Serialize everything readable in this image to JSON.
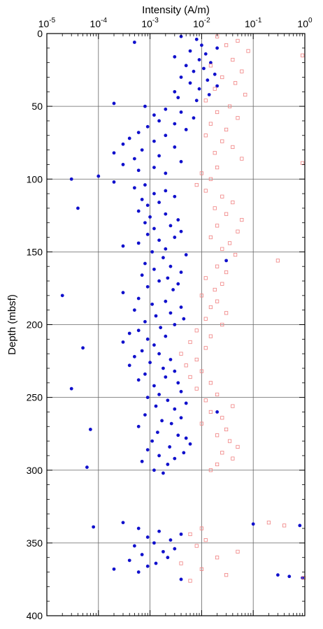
{
  "chart_data": {
    "type": "scatter",
    "title": "",
    "xlabel": "Intensity (A/m)",
    "ylabel": "Depth (mbsf)",
    "x_scale": "log",
    "xlim": [
      1e-05,
      1
    ],
    "ylim": [
      0,
      400
    ],
    "y_inverted": true,
    "x_axis_position": "top",
    "grid": true,
    "x_tick_labels": [
      {
        "mant": "10",
        "exp": "-5"
      },
      {
        "mant": "10",
        "exp": "-4"
      },
      {
        "mant": "10",
        "exp": "-3"
      },
      {
        "mant": "10",
        "exp": "-2"
      },
      {
        "mant": "10",
        "exp": "-1"
      },
      {
        "mant": "10",
        "exp": "0"
      }
    ],
    "y_ticks": [
      0,
      50,
      100,
      150,
      200,
      250,
      300,
      350,
      400
    ],
    "series": [
      {
        "marker": "filled-circle",
        "color": "#1010cc",
        "points": [
          [
            2,
            0.004
          ],
          [
            4,
            0.008
          ],
          [
            6,
            0.0005
          ],
          [
            8,
            0.01
          ],
          [
            10,
            0.02
          ],
          [
            12,
            0.006
          ],
          [
            14,
            0.012
          ],
          [
            16,
            0.003
          ],
          [
            18,
            0.009
          ],
          [
            20,
            0.015
          ],
          [
            22,
            0.005
          ],
          [
            24,
            0.011
          ],
          [
            26,
            0.007
          ],
          [
            28,
            0.018
          ],
          [
            30,
            0.004
          ],
          [
            32,
            0.013
          ],
          [
            34,
            0.006
          ],
          [
            36,
            0.02
          ],
          [
            38,
            0.009
          ],
          [
            40,
            0.003
          ],
          [
            42,
            0.014
          ],
          [
            44,
            0.0035
          ],
          [
            46,
            0.008
          ],
          [
            48,
            0.0002
          ],
          [
            50,
            0.0008
          ],
          [
            52,
            0.002
          ],
          [
            54,
            0.004
          ],
          [
            56,
            0.0012
          ],
          [
            58,
            0.007
          ],
          [
            60,
            0.0015
          ],
          [
            62,
            0.003
          ],
          [
            64,
            0.0009
          ],
          [
            66,
            0.005
          ],
          [
            68,
            0.0006
          ],
          [
            70,
            0.002
          ],
          [
            72,
            0.0004
          ],
          [
            74,
            0.0012
          ],
          [
            76,
            0.0003
          ],
          [
            78,
            0.003
          ],
          [
            80,
            0.0007
          ],
          [
            82,
            0.0002
          ],
          [
            84,
            0.0015
          ],
          [
            86,
            0.0005
          ],
          [
            88,
            0.004
          ],
          [
            90,
            0.0003
          ],
          [
            92,
            0.0012
          ],
          [
            94,
            0.0006
          ],
          [
            96,
            0.002
          ],
          [
            98,
            0.0001
          ],
          [
            100,
            3e-05
          ],
          [
            102,
            0.0002
          ],
          [
            104,
            0.0008
          ],
          [
            106,
            0.0005
          ],
          [
            108,
            0.002
          ],
          [
            110,
            0.0012
          ],
          [
            112,
            0.003
          ],
          [
            114,
            0.0007
          ],
          [
            116,
            0.0015
          ],
          [
            118,
            0.0009
          ],
          [
            120,
            4e-05
          ],
          [
            122,
            0.0006
          ],
          [
            124,
            0.002
          ],
          [
            126,
            0.001
          ],
          [
            128,
            0.0035
          ],
          [
            130,
            0.0008
          ],
          [
            132,
            0.0025
          ],
          [
            134,
            0.0012
          ],
          [
            136,
            0.004
          ],
          [
            138,
            0.0009
          ],
          [
            140,
            0.003
          ],
          [
            142,
            0.0015
          ],
          [
            144,
            0.0006
          ],
          [
            146,
            0.0003
          ],
          [
            148,
            0.002
          ],
          [
            150,
            0.0011
          ],
          [
            152,
            0.005
          ],
          [
            154,
            0.0018
          ],
          [
            156,
            0.03
          ],
          [
            158,
            0.0008
          ],
          [
            160,
            0.0025
          ],
          [
            162,
            0.0012
          ],
          [
            164,
            0.004
          ],
          [
            166,
            0.0007
          ],
          [
            168,
            0.0022
          ],
          [
            170,
            0.0015
          ],
          [
            172,
            0.0035
          ],
          [
            174,
            0.0009
          ],
          [
            176,
            0.0028
          ],
          [
            178,
            0.0003
          ],
          [
            180,
            2e-05
          ],
          [
            182,
            0.0006
          ],
          [
            184,
            0.002
          ],
          [
            186,
            0.0011
          ],
          [
            188,
            0.004
          ],
          [
            190,
            0.0005
          ],
          [
            192,
            0.0025
          ],
          [
            194,
            0.0013
          ],
          [
            196,
            0.0045
          ],
          [
            198,
            0.0008
          ],
          [
            200,
            0.003
          ],
          [
            202,
            0.0016
          ],
          [
            204,
            0.0006
          ],
          [
            206,
            0.0004
          ],
          [
            208,
            0.002
          ],
          [
            210,
            0.0009
          ],
          [
            212,
            0.0003
          ],
          [
            214,
            0.0012
          ],
          [
            216,
            5e-05
          ],
          [
            218,
            0.0007
          ],
          [
            220,
            0.0015
          ],
          [
            222,
            0.0005
          ],
          [
            224,
            0.0025
          ],
          [
            226,
            0.001
          ],
          [
            228,
            0.0004
          ],
          [
            230,
            0.0018
          ],
          [
            232,
            0.003
          ],
          [
            234,
            0.0008
          ],
          [
            236,
            0.002
          ],
          [
            238,
            0.0006
          ],
          [
            240,
            0.0035
          ],
          [
            242,
            0.0012
          ],
          [
            244,
            3e-05
          ],
          [
            246,
            0.004
          ],
          [
            248,
            0.0015
          ],
          [
            250,
            0.0009
          ],
          [
            252,
            0.0022
          ],
          [
            254,
            0.005
          ],
          [
            256,
            0.0013
          ],
          [
            258,
            0.003
          ],
          [
            260,
            0.02
          ],
          [
            262,
            0.0008
          ],
          [
            264,
            0.004
          ],
          [
            266,
            0.0017
          ],
          [
            268,
            0.0026
          ],
          [
            270,
            0.0006
          ],
          [
            272,
            7e-05
          ],
          [
            274,
            0.0014
          ],
          [
            276,
            0.0035
          ],
          [
            278,
            0.005
          ],
          [
            280,
            0.0011
          ],
          [
            282,
            0.006
          ],
          [
            284,
            0.0024
          ],
          [
            286,
            0.0009
          ],
          [
            288,
            0.0045
          ],
          [
            290,
            0.0015
          ],
          [
            292,
            0.003
          ],
          [
            294,
            0.0007
          ],
          [
            296,
            0.0022
          ],
          [
            298,
            6e-05
          ],
          [
            300,
            0.0012
          ],
          [
            302,
            0.0018
          ],
          [
            336,
            0.0003
          ],
          [
            337,
            0.1
          ],
          [
            338,
            0.8
          ],
          [
            339,
            8e-05
          ],
          [
            340,
            0.0006
          ],
          [
            342,
            0.0015
          ],
          [
            344,
            0.004
          ],
          [
            346,
            0.0009
          ],
          [
            348,
            0.0025
          ],
          [
            350,
            0.0012
          ],
          [
            352,
            0.0005
          ],
          [
            354,
            0.003
          ],
          [
            356,
            0.0018
          ],
          [
            358,
            0.0007
          ],
          [
            360,
            0.0022
          ],
          [
            362,
            0.0004
          ],
          [
            364,
            0.0013
          ],
          [
            366,
            0.0009
          ],
          [
            368,
            0.0002
          ],
          [
            370,
            0.0006
          ],
          [
            372,
            0.3
          ],
          [
            373,
            0.5
          ],
          [
            374,
            0.9
          ],
          [
            375,
            0.004
          ]
        ]
      },
      {
        "marker": "open-square",
        "color": "#f08080",
        "points": [
          [
            2,
            0.02
          ],
          [
            5,
            0.05
          ],
          [
            8,
            0.03
          ],
          [
            12,
            0.08
          ],
          [
            15,
            0.9
          ],
          [
            18,
            0.04
          ],
          [
            22,
            0.015
          ],
          [
            26,
            0.06
          ],
          [
            30,
            0.025
          ],
          [
            34,
            0.045
          ],
          [
            38,
            0.018
          ],
          [
            42,
            0.07
          ],
          [
            46,
            0.012
          ],
          [
            50,
            0.035
          ],
          [
            54,
            0.02
          ],
          [
            58,
            0.05
          ],
          [
            62,
            0.015
          ],
          [
            66,
            0.03
          ],
          [
            70,
            0.012
          ],
          [
            74,
            0.025
          ],
          [
            78,
            0.04
          ],
          [
            82,
            0.018
          ],
          [
            86,
            0.06
          ],
          [
            89,
            0.9
          ],
          [
            92,
            0.02
          ],
          [
            96,
            0.01
          ],
          [
            100,
            0.015
          ],
          [
            104,
            0.008
          ],
          [
            108,
            0.012
          ],
          [
            112,
            0.025
          ],
          [
            116,
            0.04
          ],
          [
            120,
            0.018
          ],
          [
            124,
            0.03
          ],
          [
            128,
            0.06
          ],
          [
            132,
            0.02
          ],
          [
            136,
            0.05
          ],
          [
            140,
            0.015
          ],
          [
            144,
            0.035
          ],
          [
            148,
            0.025
          ],
          [
            152,
            0.045
          ],
          [
            156,
            0.3
          ],
          [
            160,
            0.02
          ],
          [
            164,
            0.03
          ],
          [
            168,
            0.012
          ],
          [
            172,
            0.025
          ],
          [
            176,
            0.018
          ],
          [
            180,
            0.01
          ],
          [
            184,
            0.02
          ],
          [
            188,
            0.015
          ],
          [
            192,
            0.03
          ],
          [
            196,
            0.012
          ],
          [
            200,
            0.025
          ],
          [
            204,
            0.008
          ],
          [
            208,
            0.015
          ],
          [
            212,
            0.006
          ],
          [
            216,
            0.012
          ],
          [
            220,
            0.004
          ],
          [
            224,
            0.008
          ],
          [
            228,
            0.005
          ],
          [
            232,
            0.01
          ],
          [
            236,
            0.006
          ],
          [
            240,
            0.015
          ],
          [
            244,
            0.008
          ],
          [
            248,
            0.02
          ],
          [
            252,
            0.012
          ],
          [
            256,
            0.04
          ],
          [
            260,
            0.015
          ],
          [
            264,
            0.025
          ],
          [
            268,
            0.01
          ],
          [
            272,
            0.03
          ],
          [
            276,
            0.02
          ],
          [
            280,
            0.035
          ],
          [
            284,
            0.05
          ],
          [
            288,
            0.025
          ],
          [
            292,
            0.04
          ],
          [
            296,
            0.02
          ],
          [
            300,
            0.015
          ],
          [
            336,
            0.2
          ],
          [
            338,
            0.4
          ],
          [
            340,
            0.01
          ],
          [
            344,
            0.006
          ],
          [
            348,
            0.012
          ],
          [
            352,
            0.008
          ],
          [
            356,
            0.05
          ],
          [
            360,
            0.02
          ],
          [
            364,
            0.004
          ],
          [
            368,
            0.01
          ],
          [
            372,
            0.03
          ],
          [
            374,
            0.95
          ],
          [
            376,
            0.006
          ]
        ]
      }
    ]
  }
}
